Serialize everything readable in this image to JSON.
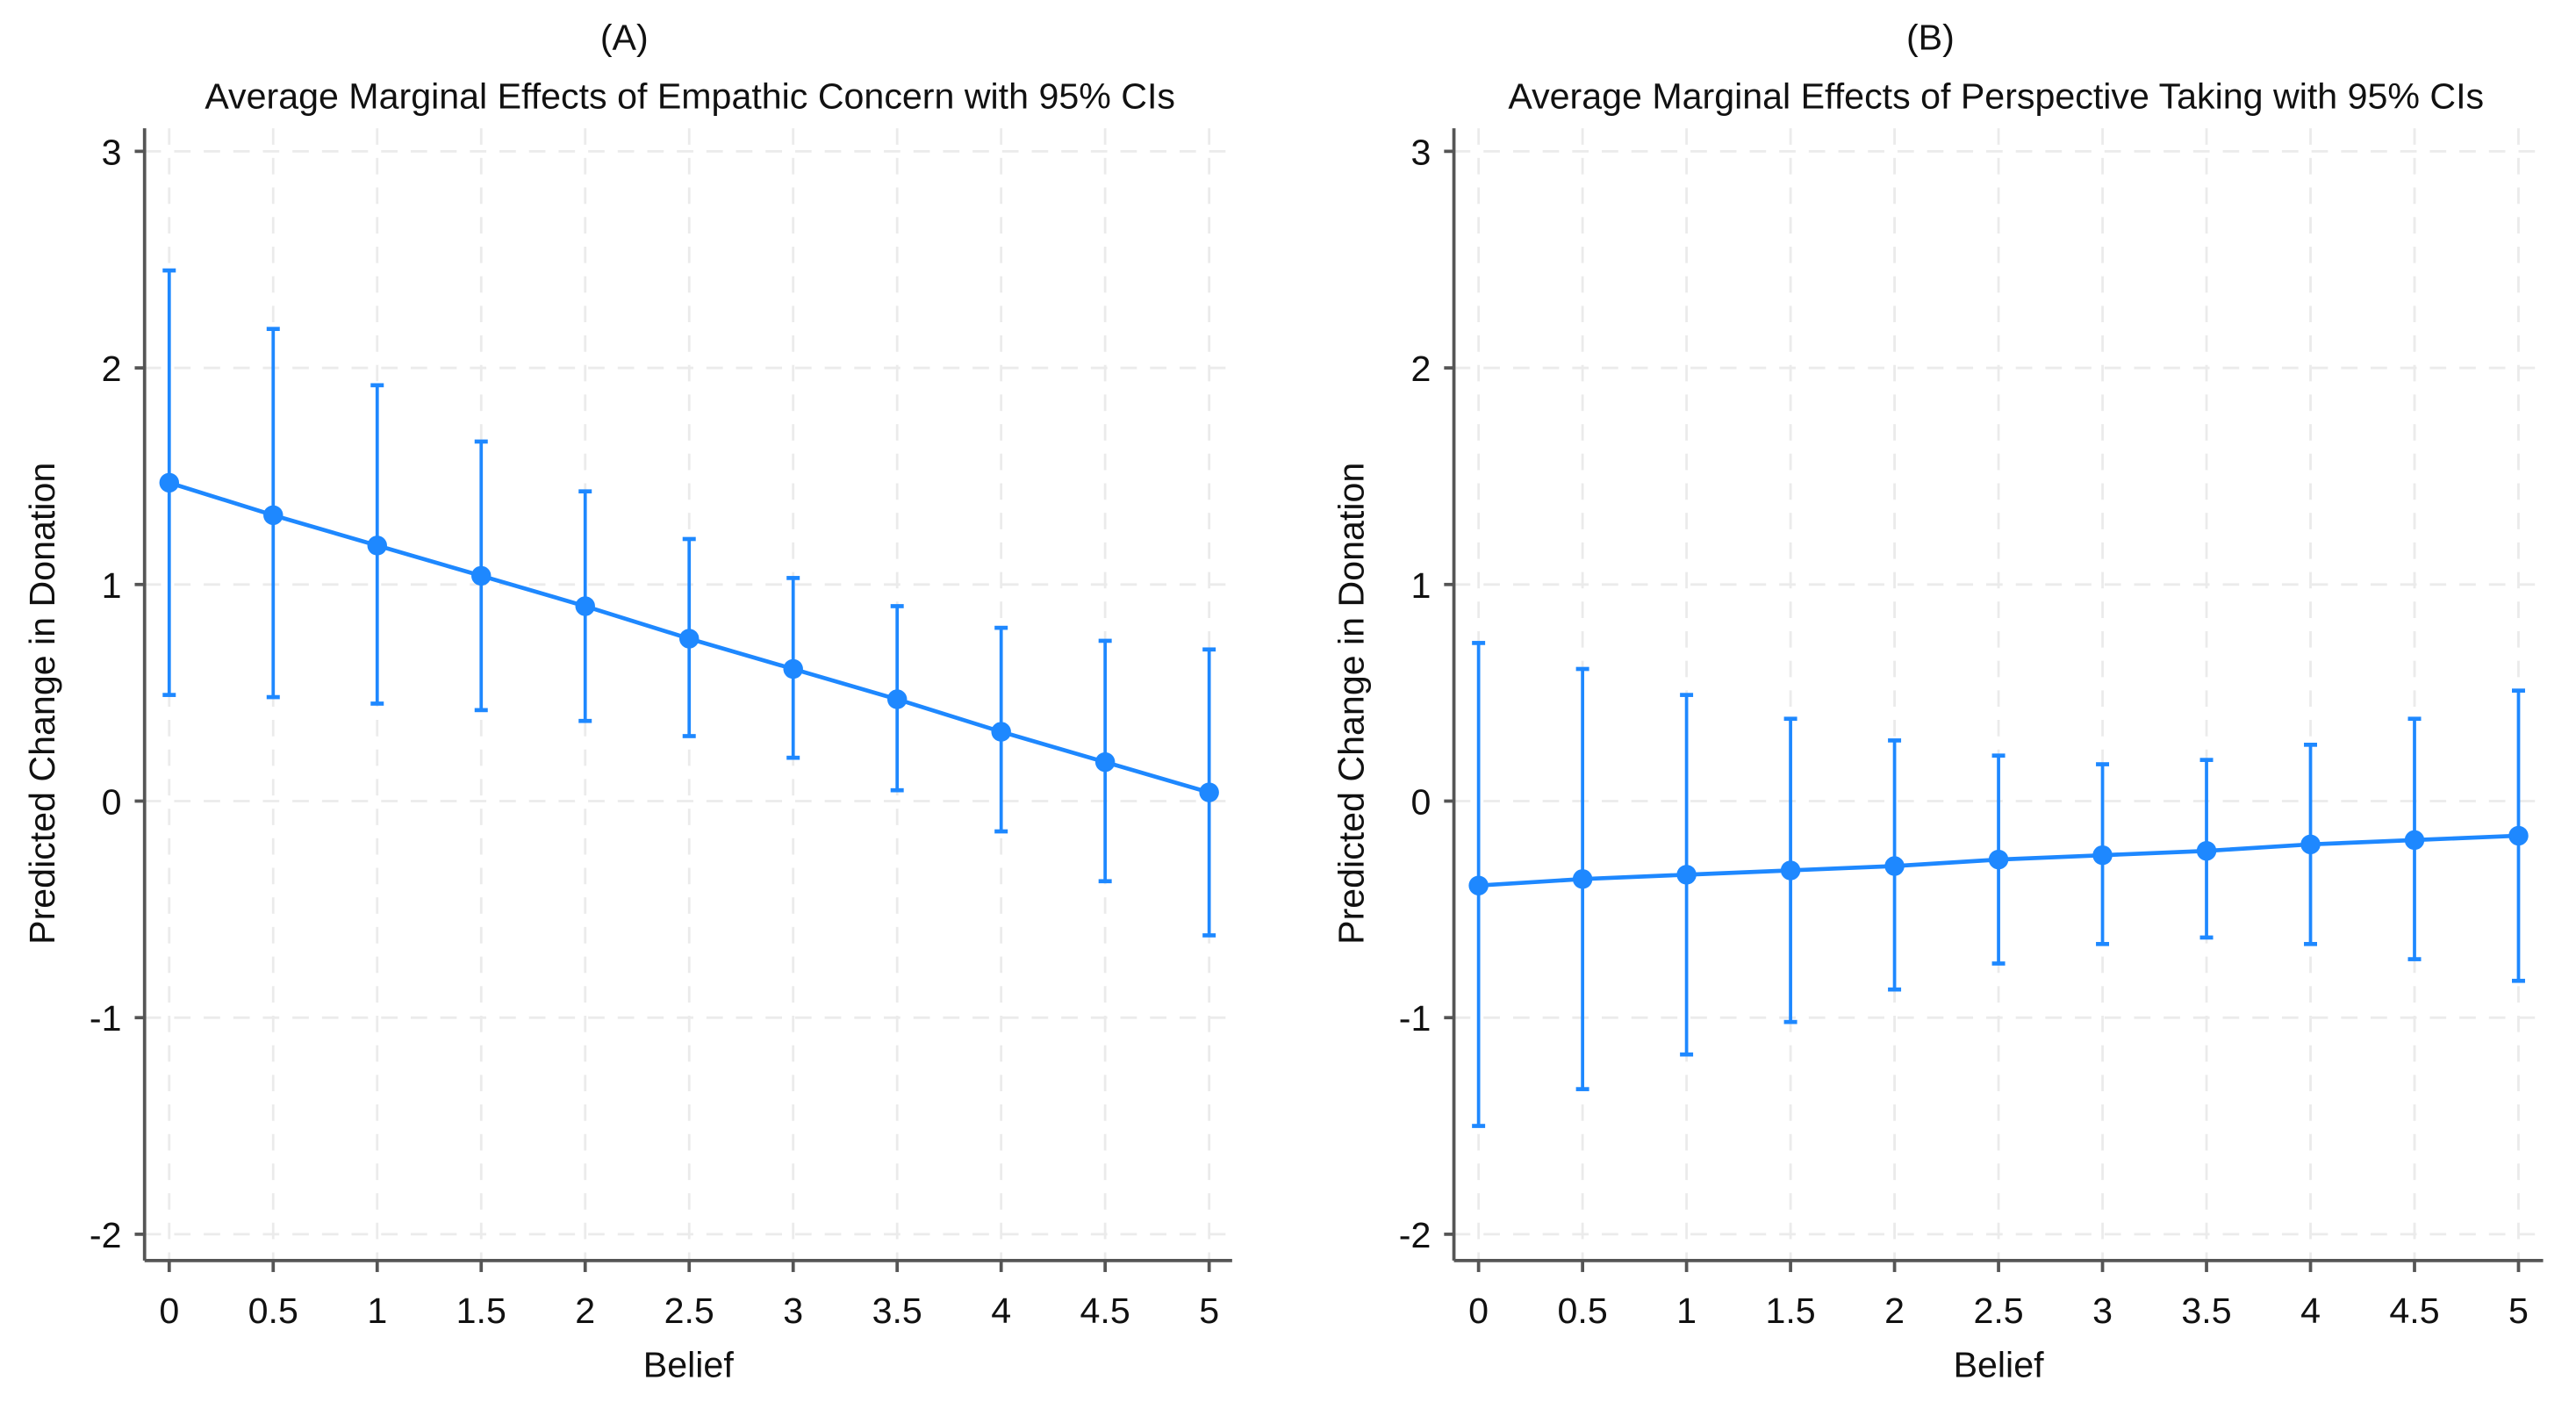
{
  "colors": {
    "series": "#1e88ff",
    "axis": "#555555",
    "grid": "#ebebeb"
  },
  "chart_data": [
    {
      "type": "scatter",
      "panel_label": "(A)",
      "title": "Average Marginal Effects of Empathic Concern with 95% CIs",
      "xlabel": "Belief",
      "ylabel": "Predicted Change in Donation",
      "xlim": [
        0,
        5
      ],
      "ylim": [
        -2,
        3
      ],
      "xticks": [
        "0",
        "0.5",
        "1",
        "1.5",
        "2",
        "2.5",
        "3",
        "3.5",
        "4",
        "4.5",
        "5"
      ],
      "yticks": [
        "3",
        "2",
        "1",
        "0",
        "-1",
        "-2"
      ],
      "grid": true,
      "x": [
        0,
        0.5,
        1,
        1.5,
        2,
        2.5,
        3,
        3.5,
        4,
        4.5,
        5
      ],
      "estimate": [
        1.47,
        1.32,
        1.18,
        1.04,
        0.9,
        0.75,
        0.61,
        0.47,
        0.32,
        0.18,
        0.04
      ],
      "ci_upper": [
        2.45,
        2.18,
        1.92,
        1.66,
        1.43,
        1.21,
        1.03,
        0.9,
        0.8,
        0.74,
        0.7
      ],
      "ci_lower": [
        0.49,
        0.48,
        0.45,
        0.42,
        0.37,
        0.3,
        0.2,
        0.05,
        -0.14,
        -0.37,
        -0.62
      ]
    },
    {
      "type": "scatter",
      "panel_label": "(B)",
      "title": "Average Marginal Effects of Perspective Taking with 95% CIs",
      "xlabel": "Belief",
      "ylabel": "Predicted Change in Donation",
      "xlim": [
        0,
        5
      ],
      "ylim": [
        -2,
        3
      ],
      "xticks": [
        "0",
        "0.5",
        "1",
        "1.5",
        "2",
        "2.5",
        "3",
        "3.5",
        "4",
        "4.5",
        "5"
      ],
      "yticks": [
        "3",
        "2",
        "1",
        "0",
        "-1",
        "-2"
      ],
      "grid": true,
      "x": [
        0,
        0.5,
        1,
        1.5,
        2,
        2.5,
        3,
        3.5,
        4,
        4.5,
        5
      ],
      "estimate": [
        -0.39,
        -0.36,
        -0.34,
        -0.32,
        -0.3,
        -0.27,
        -0.25,
        -0.23,
        -0.2,
        -0.18,
        -0.16
      ],
      "ci_upper": [
        0.73,
        0.61,
        0.49,
        0.38,
        0.28,
        0.21,
        0.17,
        0.19,
        0.26,
        0.38,
        0.51
      ],
      "ci_lower": [
        -1.5,
        -1.33,
        -1.17,
        -1.02,
        -0.87,
        -0.75,
        -0.66,
        -0.63,
        -0.66,
        -0.73,
        -0.83
      ]
    }
  ]
}
